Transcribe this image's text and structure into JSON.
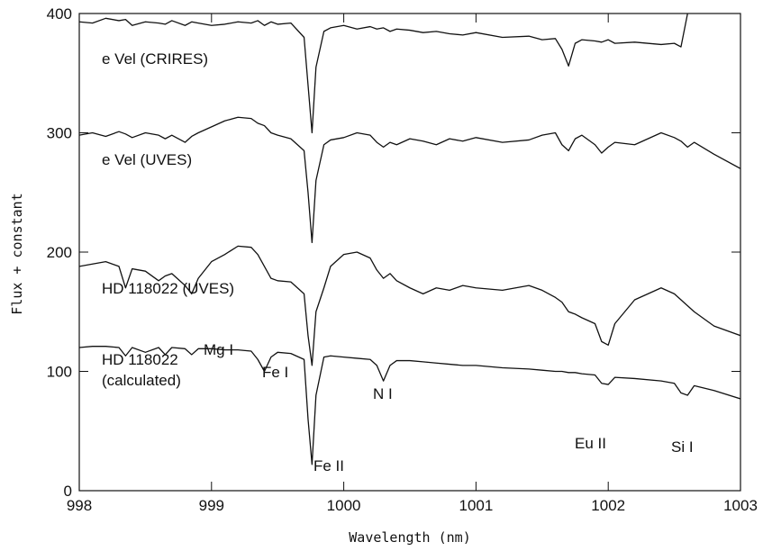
{
  "chart_data": {
    "type": "line",
    "xlabel": "Wavelength (nm)",
    "ylabel": "Flux + constant",
    "xlim": [
      998,
      1003
    ],
    "xticks": [
      998,
      999,
      1000,
      1001,
      1002,
      1003
    ],
    "ylim": [
      0,
      400
    ],
    "yticks": [
      0,
      100,
      200,
      300,
      400
    ],
    "x": [
      998.0,
      998.1,
      998.2,
      998.3,
      998.35,
      998.4,
      998.5,
      998.6,
      998.65,
      998.7,
      998.8,
      998.85,
      998.9,
      999.0,
      999.1,
      999.2,
      999.3,
      999.35,
      999.4,
      999.45,
      999.5,
      999.6,
      999.7,
      999.73,
      999.76,
      999.79,
      999.85,
      999.9,
      1000.0,
      1000.1,
      1000.2,
      1000.25,
      1000.3,
      1000.35,
      1000.4,
      1000.5,
      1000.6,
      1000.7,
      1000.8,
      1000.9,
      1001.0,
      1001.2,
      1001.4,
      1001.5,
      1001.6,
      1001.65,
      1001.7,
      1001.75,
      1001.8,
      1001.9,
      1001.95,
      1002.0,
      1002.05,
      1002.2,
      1002.4,
      1002.5,
      1002.55,
      1002.6,
      1002.65,
      1002.8,
      1003.0
    ],
    "series": [
      {
        "name": "e Vel (CRIRES)",
        "color": "#111111",
        "values": [
          393,
          392,
          396,
          394,
          395,
          390,
          393,
          392,
          391,
          394,
          390,
          393,
          392,
          390,
          391,
          393,
          392,
          394,
          390,
          393,
          391,
          392,
          380,
          340,
          300,
          355,
          385,
          388,
          390,
          387,
          389,
          387,
          388,
          385,
          387,
          386,
          384,
          385,
          383,
          382,
          384,
          380,
          381,
          378,
          379,
          370,
          356,
          375,
          378,
          377,
          376,
          378,
          375,
          376,
          374,
          375,
          372,
          400,
          null,
          null,
          null
        ]
      },
      {
        "name": "e Vel (UVES)",
        "color": "#111111",
        "values": [
          298,
          300,
          297,
          301,
          299,
          296,
          300,
          298,
          295,
          298,
          292,
          297,
          300,
          305,
          310,
          313,
          312,
          308,
          306,
          300,
          298,
          295,
          285,
          250,
          208,
          260,
          290,
          294,
          296,
          300,
          298,
          292,
          288,
          292,
          290,
          295,
          293,
          290,
          295,
          293,
          296,
          292,
          294,
          298,
          300,
          290,
          285,
          295,
          298,
          290,
          283,
          288,
          292,
          290,
          300,
          296,
          293,
          288,
          292,
          282,
          270
        ]
      },
      {
        "name": "HD 118022 (UVES)",
        "color": "#111111",
        "values": [
          188,
          190,
          192,
          188,
          170,
          186,
          184,
          176,
          180,
          182,
          172,
          165,
          178,
          192,
          198,
          205,
          204,
          198,
          188,
          178,
          176,
          175,
          165,
          130,
          105,
          150,
          170,
          188,
          198,
          200,
          195,
          185,
          178,
          182,
          176,
          170,
          165,
          170,
          168,
          172,
          170,
          168,
          172,
          168,
          162,
          158,
          150,
          148,
          145,
          140,
          125,
          122,
          140,
          160,
          170,
          165,
          160,
          155,
          150,
          138,
          130
        ]
      },
      {
        "name": "HD 118022 (calculated)",
        "color": "#111111",
        "values": [
          120,
          121,
          121,
          120,
          113,
          120,
          116,
          120,
          114,
          120,
          119,
          114,
          119,
          119,
          118,
          118,
          117,
          110,
          100,
          112,
          116,
          115,
          110,
          60,
          22,
          80,
          112,
          113,
          112,
          111,
          110,
          105,
          92,
          105,
          109,
          109,
          108,
          107,
          106,
          105,
          105,
          103,
          102,
          101,
          100,
          100,
          99,
          99,
          98,
          97,
          90,
          89,
          95,
          94,
          92,
          90,
          82,
          80,
          88,
          84,
          77
        ]
      }
    ],
    "annotations": [
      "Mg I",
      "Fe I",
      "Fe II",
      "N I",
      "Eu II",
      "Si I"
    ]
  }
}
